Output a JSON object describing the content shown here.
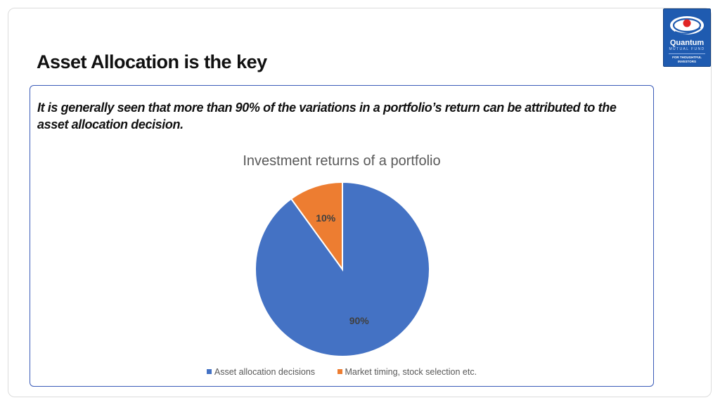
{
  "slide": {
    "title": "Asset Allocation is the key",
    "lead_text": "It is generally seen that more than 90% of the variations in a portfolio’s return can be attributed to the asset allocation decision."
  },
  "logo": {
    "name": "Quantum",
    "subtitle": "MUTUAL FUND",
    "tagline_line1": "FOR THOUGHTFUL",
    "tagline_line2": "INVESTORS",
    "color": "#1f5bb0"
  },
  "chart_data": {
    "type": "pie",
    "title": "Investment returns of a portfolio",
    "start_angle_deg": 0,
    "slices": [
      {
        "name": "Asset allocation decisions",
        "value": 90,
        "label": "90%",
        "color": "#4472c4"
      },
      {
        "name": "Market timing, stock selection etc.",
        "value": 10,
        "label": "10%",
        "color": "#ed7d31"
      }
    ],
    "legend": {
      "position": "bottom"
    }
  }
}
